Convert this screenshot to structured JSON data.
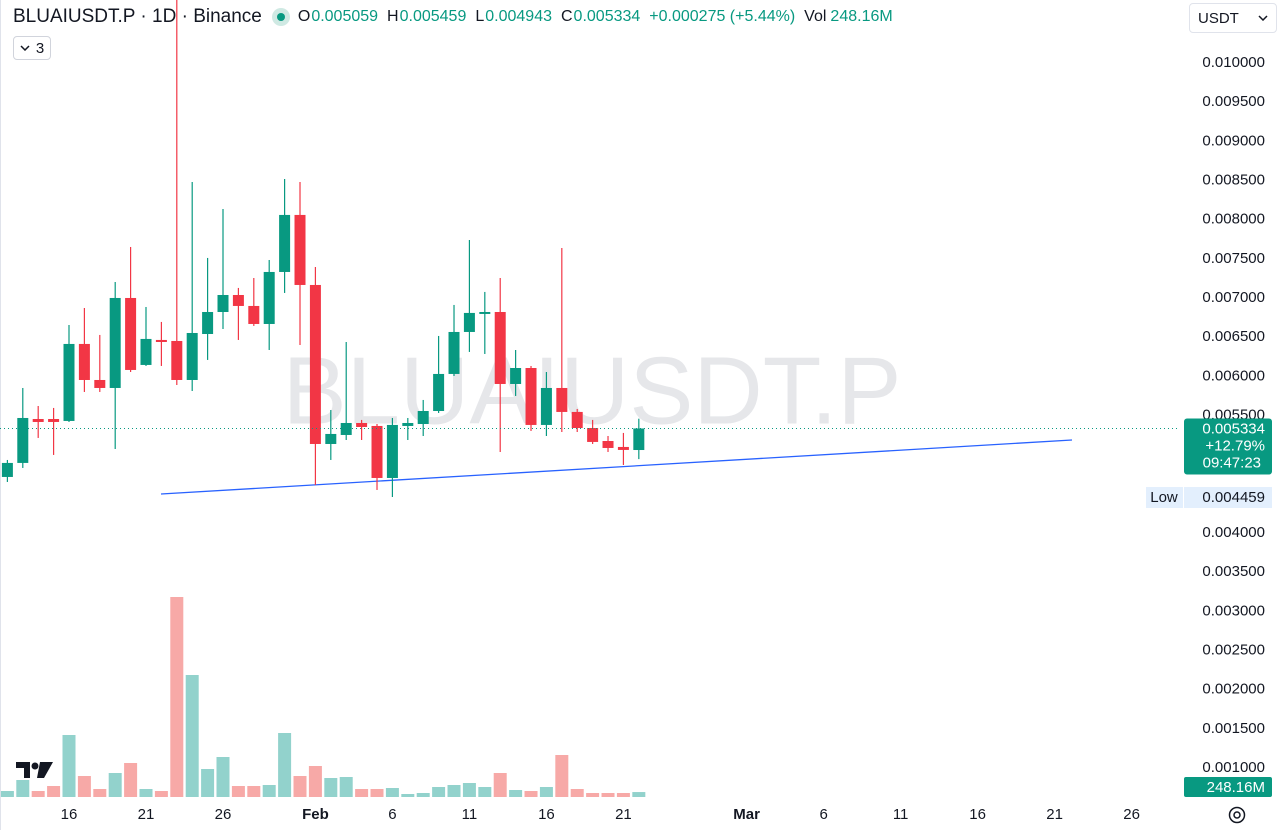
{
  "header": {
    "symbol": "BLUAIUSDT.P · 1D · Binance",
    "open_label": "O",
    "high_label": "H",
    "low_label": "L",
    "close_label": "C",
    "change": "+0.000275 (+5.44%)",
    "volume_label": "Vol",
    "volume_unit": "M"
  },
  "indicator_count": "3",
  "currency": "USDT",
  "watermark": "BLUAIUSDT.P",
  "price_badge": {
    "change": "+12.79%",
    "countdown": "09:47:23"
  },
  "low_badge_label": "Low",
  "chart_data": {
    "type": "candlestick",
    "open": [
      0.004715,
      0.004894,
      0.005455,
      0.005455,
      0.00543,
      0.006413,
      0.005953,
      0.005851,
      0.007,
      0.006145,
      0.006464,
      0.006451,
      0.005953,
      0.00654,
      0.006821,
      0.007038,
      0.006898,
      0.006668,
      0.007332,
      0.00806,
      0.007166,
      0.005136,
      0.005251,
      0.005404,
      0.005366,
      0.004702,
      0.005366,
      0.005391,
      0.005557,
      0.00603,
      0.006566,
      0.006796,
      0.006821,
      0.005902,
      0.006106,
      0.005379,
      0.005851,
      0.005545,
      0.00534,
      0.005174,
      0.005098,
      0.005059
    ],
    "high": [
      0.004932,
      0.005851,
      0.005621,
      0.005596,
      0.006655,
      0.006872,
      0.006528,
      0.007204,
      0.007651,
      0.006885,
      0.006694,
      0.010804,
      0.008481,
      0.007511,
      0.008136,
      0.007128,
      0.007255,
      0.007485,
      0.008519,
      0.008481,
      0.007396,
      0.00557,
      0.006438,
      0.005443,
      0.005391,
      0.005468,
      0.005468,
      0.005698,
      0.006515,
      0.006911,
      0.00774,
      0.007077,
      0.007255,
      0.006336,
      0.006132,
      0.006055,
      0.007638,
      0.005583,
      0.005443,
      0.005238,
      0.005277,
      0.005459
    ],
    "low": [
      0.004651,
      0.00483,
      0.005213,
      0.004996,
      0.005417,
      0.0058,
      0.0058,
      0.005072,
      0.006055,
      0.006132,
      0.006132,
      0.005889,
      0.005813,
      0.006209,
      0.006604,
      0.006464,
      0.006643,
      0.006336,
      0.007064,
      0.0064,
      0.004613,
      0.004932,
      0.005187,
      0.005187,
      0.004549,
      0.004459,
      0.005187,
      0.005238,
      0.005532,
      0.006004,
      0.006311,
      0.006285,
      0.005034,
      0.005749,
      0.005302,
      0.005238,
      0.005289,
      0.005289,
      0.005136,
      0.005034,
      0.004868,
      0.004943
    ],
    "close": [
      0.004894,
      0.005468,
      0.005417,
      0.005417,
      0.006413,
      0.005953,
      0.005851,
      0.007,
      0.006081,
      0.006477,
      0.006438,
      0.005953,
      0.006553,
      0.006821,
      0.007038,
      0.006898,
      0.006668,
      0.007332,
      0.00806,
      0.007166,
      0.005136,
      0.005264,
      0.005404,
      0.005353,
      0.004702,
      0.005379,
      0.005404,
      0.005557,
      0.00603,
      0.006566,
      0.006809,
      0.006821,
      0.005902,
      0.006106,
      0.005379,
      0.005851,
      0.005545,
      0.00534,
      0.005162,
      0.005085,
      0.00506,
      0.005334
    ],
    "volume": [
      300,
      850,
      300,
      550,
      3100,
      1050,
      400,
      1200,
      1700,
      400,
      300,
      10000,
      6100,
      1400,
      2000,
      550,
      550,
      600,
      3200,
      1050,
      1550,
      950,
      1000,
      400,
      400,
      450,
      150,
      200,
      500,
      600,
      700,
      500,
      1200,
      350,
      300,
      500,
      2100,
      400,
      200,
      200,
      200,
      248.16
    ],
    "xlim": [
      -0.48,
      76.14
    ],
    "xticks": [
      {
        "value": 4,
        "label": "16"
      },
      {
        "value": 9,
        "label": "21"
      },
      {
        "value": 14,
        "label": "26"
      },
      {
        "value": 20,
        "label": "Feb"
      },
      {
        "value": 25,
        "label": "6"
      },
      {
        "value": 30,
        "label": "11"
      },
      {
        "value": 35,
        "label": "16"
      },
      {
        "value": 40,
        "label": "21"
      },
      {
        "value": 48,
        "label": "Mar"
      },
      {
        "value": 53,
        "label": "6"
      },
      {
        "value": 58,
        "label": "11"
      },
      {
        "value": 63,
        "label": "16"
      },
      {
        "value": 68,
        "label": "21"
      },
      {
        "value": 73,
        "label": "26"
      }
    ],
    "ylim": [
      0.000591,
      0.010804
    ],
    "yticks": [
      {
        "value": 0.001,
        "label": "0.001000"
      },
      {
        "value": 0.0015,
        "label": "0.001500"
      },
      {
        "value": 0.002,
        "label": "0.002000"
      },
      {
        "value": 0.0025,
        "label": "0.002500"
      },
      {
        "value": 0.003,
        "label": "0.003000"
      },
      {
        "value": 0.0035,
        "label": "0.003500"
      },
      {
        "value": 0.004,
        "label": "0.004000"
      },
      {
        "value": 0.0055,
        "label": "0.005500"
      },
      {
        "value": 0.006,
        "label": "0.006000"
      },
      {
        "value": 0.0065,
        "label": "0.006500"
      },
      {
        "value": 0.007,
        "label": "0.007000"
      },
      {
        "value": 0.0075,
        "label": "0.007500"
      },
      {
        "value": 0.008,
        "label": "0.008000"
      },
      {
        "value": 0.0085,
        "label": "0.008500"
      },
      {
        "value": 0.009,
        "label": "0.009000"
      },
      {
        "value": 0.0095,
        "label": "0.009500"
      },
      {
        "value": 0.01,
        "label": "0.010000"
      }
    ],
    "volume_ylim": [
      0,
      10000
    ],
    "up_color": "#089981",
    "down_color": "#f23645",
    "volume_up_color": "#92d2cc",
    "volume_down_color": "#f7a9a7"
  }
}
